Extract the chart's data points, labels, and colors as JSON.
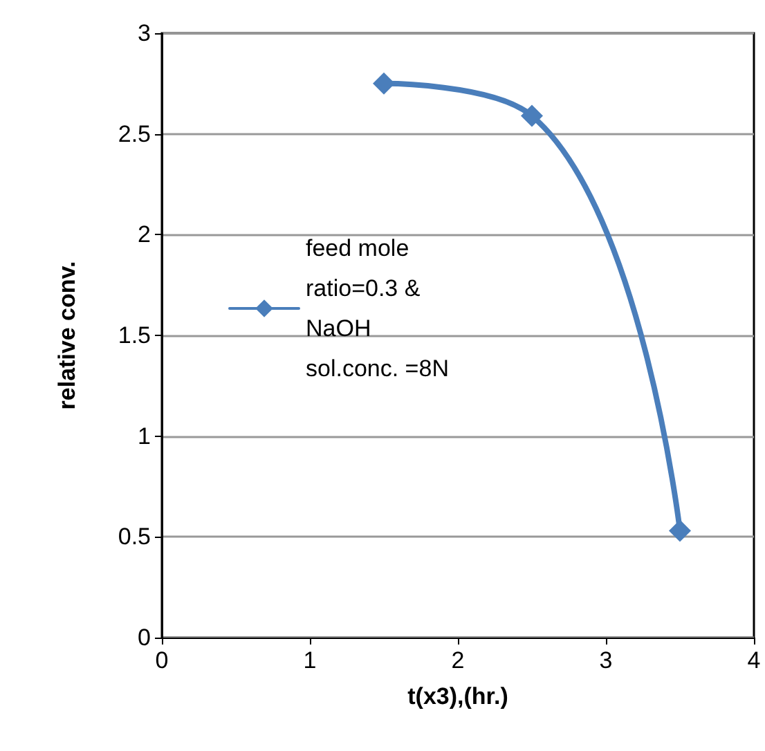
{
  "chart_data": {
    "type": "line",
    "xlabel": "t(x3),(hr.)",
    "ylabel": "relative conv.",
    "series": [
      {
        "name": "feed mole ratio=0.3 & NaOH sol.conc. =8N",
        "color": "#4a7ebb",
        "x": [
          1.5,
          2.5,
          3.5
        ],
        "values": [
          2.75,
          2.59,
          0.53
        ]
      }
    ],
    "xlim": [
      0,
      4
    ],
    "xticks": [
      0,
      1,
      2,
      3,
      4
    ],
    "ylim": [
      0,
      3
    ],
    "yticks": [
      0,
      0.5,
      1,
      1.5,
      2,
      2.5,
      3
    ],
    "grid": "y",
    "legend": "left",
    "marker": "diamond",
    "line_style": "solid"
  }
}
